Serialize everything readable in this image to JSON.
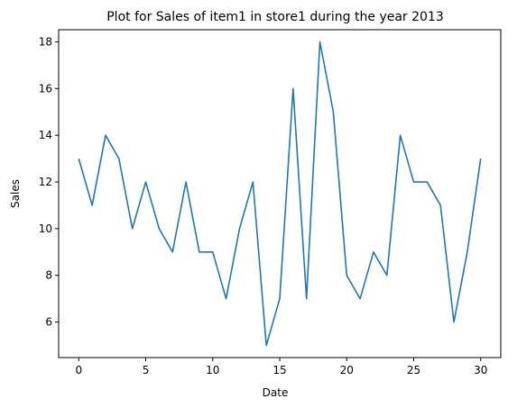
{
  "chart_data": {
    "type": "line",
    "title": "Plot for Sales of item1 in store1 during the year 2013",
    "xlabel": "Date",
    "ylabel": "Sales",
    "xlim": [
      -1.5,
      31.5
    ],
    "ylim": [
      4.48,
      18.52
    ],
    "xticks": [
      0,
      5,
      10,
      15,
      20,
      25,
      30
    ],
    "yticks": [
      6,
      8,
      10,
      12,
      14,
      16,
      18
    ],
    "grid": false,
    "series": [
      {
        "color": "#1f77b4",
        "x": [
          0,
          1,
          2,
          3,
          4,
          5,
          6,
          7,
          8,
          9,
          10,
          11,
          12,
          13,
          14,
          15,
          16,
          17,
          18,
          19,
          20,
          21,
          22,
          23,
          24,
          25,
          26,
          27,
          28,
          29,
          30
        ],
        "values": [
          13,
          11,
          14,
          13,
          10,
          12,
          10,
          9,
          12,
          9,
          9,
          7,
          10,
          12,
          5,
          7,
          16,
          7,
          18,
          15,
          8,
          7,
          9,
          8,
          14,
          12,
          12,
          11,
          6,
          9,
          13
        ]
      }
    ]
  }
}
